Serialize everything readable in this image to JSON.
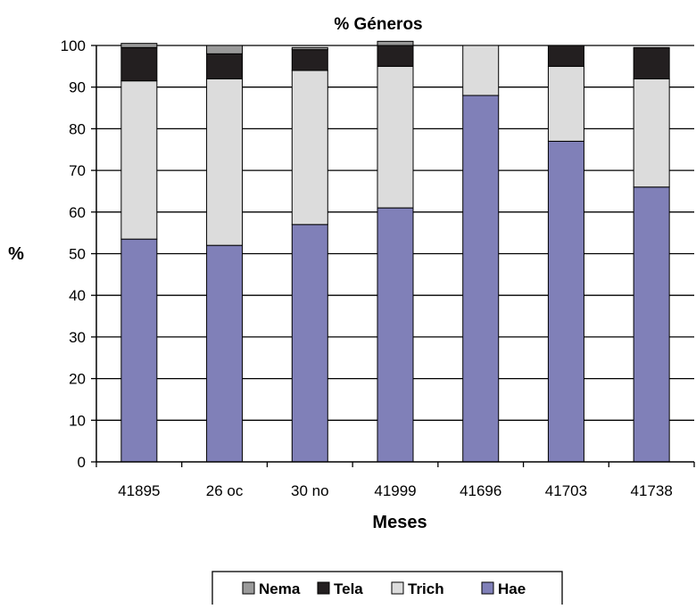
{
  "chart_data": {
    "type": "bar",
    "stacked": true,
    "title": "% Géneros",
    "xlabel": "Meses",
    "ylabel": "%",
    "ylim": [
      0,
      100
    ],
    "yticks": [
      0,
      10,
      20,
      30,
      40,
      50,
      60,
      70,
      80,
      90,
      100
    ],
    "grid": true,
    "legend_position": "bottom",
    "categories": [
      "41895",
      "26 oc",
      "30 no",
      "41999",
      "41696",
      "41703",
      "41738"
    ],
    "series": [
      {
        "name": "Hae",
        "color": "#8080b8",
        "values": [
          53.5,
          52,
          57,
          61,
          88,
          77,
          66
        ]
      },
      {
        "name": "Trich",
        "color": "#dcdcdc",
        "values": [
          38,
          40,
          37,
          34,
          12,
          18,
          26
        ]
      },
      {
        "name": "Tela",
        "color": "#231f20",
        "values": [
          8,
          6,
          5,
          5,
          0,
          5,
          7.5
        ]
      },
      {
        "name": "Nema",
        "color": "#9a9a9a",
        "values": [
          1,
          2,
          0.5,
          1,
          0,
          0,
          0
        ]
      }
    ],
    "legend_order": [
      "Nema",
      "Tela",
      "Trich",
      "Hae"
    ]
  }
}
